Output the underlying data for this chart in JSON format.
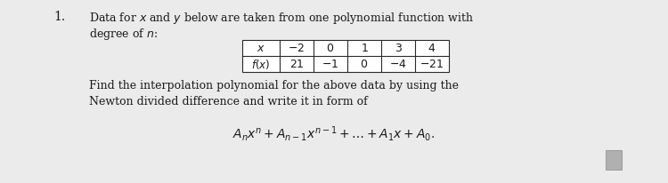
{
  "background_color": "#ebebeb",
  "fig_width": 7.5,
  "fig_height": 2.07,
  "dpi": 100,
  "number_label": "1.",
  "line1": "Data for $x$ and $y$ below are taken from one polynomial function with",
  "line2": "degree of $n$:",
  "table_x_vals": [
    "$-2$",
    "$0$",
    "$1$",
    "$3$",
    "$4$"
  ],
  "table_fx_vals": [
    "$21$",
    "$-1$",
    "$0$",
    "$-4$",
    "$-21$"
  ],
  "table_row1_label": "$x$",
  "table_row2_label": "$f(x)$",
  "line3": "Find the interpolation polynomial for the above data by using the",
  "line4": "Newton divided difference and write it in form of",
  "formula": "$A_n x^n + A_{n-1} x^{n-1} + \\ldots + A_1 x + A_0.$",
  "text_color": "#1a1a1a",
  "table_border_color": "#2a2a2a",
  "font_size_body": 9.0,
  "font_size_number": 10.0,
  "font_size_formula": 10.0,
  "font_size_table": 9.0
}
